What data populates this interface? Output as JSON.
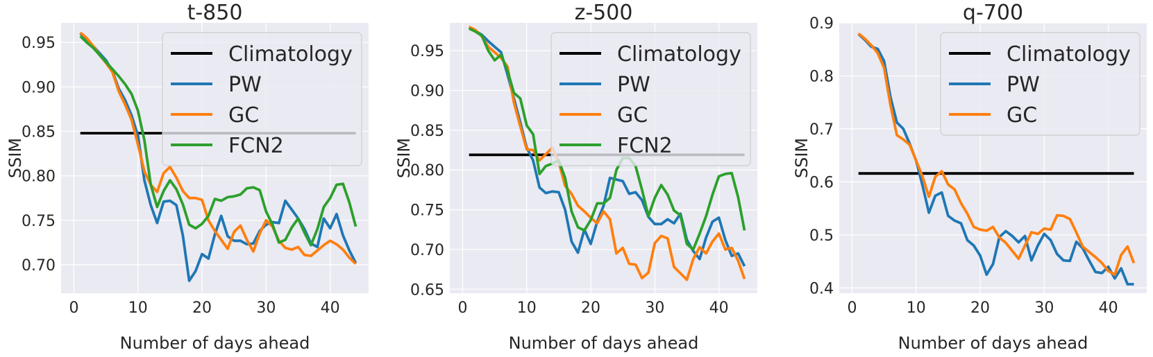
{
  "chart_data": [
    {
      "type": "line",
      "title": "t-850",
      "xlabel": "Number of days ahead",
      "ylabel": "SSIM",
      "xlim": [
        -2,
        46
      ],
      "ylim": [
        0.668,
        0.972
      ],
      "xticks": [
        0,
        10,
        20,
        30,
        40
      ],
      "yticks": [
        0.7,
        0.75,
        0.8,
        0.85,
        0.9,
        0.95
      ],
      "ytick_decimals": 2,
      "grid": true,
      "legend_position": "top-right",
      "series": [
        {
          "name": "Climatology",
          "color": "#000000",
          "x": [
            1,
            44
          ],
          "values": [
            0.848,
            0.848
          ]
        },
        {
          "name": "PW",
          "color": "#1f77b4",
          "x": [
            1,
            2,
            3,
            4,
            5,
            6,
            7,
            8,
            9,
            10,
            11,
            12,
            13,
            14,
            15,
            16,
            17,
            18,
            19,
            20,
            21,
            22,
            23,
            24,
            25,
            26,
            27,
            28,
            29,
            30,
            31,
            32,
            33,
            34,
            35,
            36,
            37,
            38,
            39,
            40,
            41,
            42,
            43,
            44
          ],
          "values": [
            0.96,
            0.953,
            0.946,
            0.938,
            0.93,
            0.918,
            0.898,
            0.885,
            0.868,
            0.845,
            0.795,
            0.767,
            0.747,
            0.771,
            0.772,
            0.767,
            0.733,
            0.682,
            0.693,
            0.712,
            0.707,
            0.734,
            0.755,
            0.732,
            0.727,
            0.727,
            0.723,
            0.724,
            0.738,
            0.745,
            0.748,
            0.747,
            0.772,
            0.762,
            0.752,
            0.74,
            0.724,
            0.72,
            0.752,
            0.741,
            0.757,
            0.733,
            0.716,
            0.702
          ]
        },
        {
          "name": "GC",
          "color": "#ff7f0e",
          "x": [
            1,
            2,
            3,
            4,
            5,
            6,
            7,
            8,
            9,
            10,
            11,
            12,
            13,
            14,
            15,
            16,
            17,
            18,
            19,
            20,
            21,
            22,
            23,
            24,
            25,
            26,
            27,
            28,
            29,
            30,
            31,
            32,
            33,
            34,
            35,
            36,
            37,
            38,
            39,
            40,
            41,
            42,
            43,
            44
          ],
          "values": [
            0.961,
            0.955,
            0.946,
            0.936,
            0.927,
            0.917,
            0.895,
            0.88,
            0.863,
            0.835,
            0.805,
            0.79,
            0.782,
            0.803,
            0.81,
            0.798,
            0.783,
            0.775,
            0.775,
            0.773,
            0.75,
            0.738,
            0.728,
            0.718,
            0.737,
            0.744,
            0.728,
            0.715,
            0.735,
            0.75,
            0.743,
            0.727,
            0.719,
            0.717,
            0.72,
            0.711,
            0.71,
            0.716,
            0.722,
            0.727,
            0.723,
            0.717,
            0.708,
            0.701
          ]
        },
        {
          "name": "FCN2",
          "color": "#2ca02c",
          "x": [
            1,
            2,
            3,
            4,
            5,
            6,
            7,
            8,
            9,
            10,
            11,
            12,
            13,
            14,
            15,
            16,
            17,
            18,
            19,
            20,
            21,
            22,
            23,
            24,
            25,
            26,
            27,
            28,
            29,
            30,
            31,
            32,
            33,
            34,
            35,
            36,
            37,
            38,
            39,
            40,
            41,
            42,
            43,
            44
          ],
          "values": [
            0.957,
            0.95,
            0.944,
            0.936,
            0.928,
            0.92,
            0.912,
            0.903,
            0.892,
            0.873,
            0.84,
            0.79,
            0.765,
            0.783,
            0.795,
            0.785,
            0.768,
            0.745,
            0.741,
            0.746,
            0.755,
            0.774,
            0.772,
            0.776,
            0.777,
            0.779,
            0.786,
            0.787,
            0.784,
            0.76,
            0.745,
            0.725,
            0.728,
            0.742,
            0.752,
            0.736,
            0.722,
            0.74,
            0.765,
            0.775,
            0.79,
            0.791,
            0.77,
            0.743
          ]
        }
      ]
    },
    {
      "type": "line",
      "title": "z-500",
      "xlabel": "Number of days ahead",
      "ylabel": "SSIM",
      "xlim": [
        -2,
        46
      ],
      "ylim": [
        0.645,
        0.985
      ],
      "xticks": [
        0,
        10,
        20,
        30,
        40
      ],
      "yticks": [
        0.65,
        0.7,
        0.75,
        0.8,
        0.85,
        0.9,
        0.95
      ],
      "ytick_decimals": 2,
      "grid": true,
      "legend_position": "top-right",
      "series": [
        {
          "name": "Climatology",
          "color": "#000000",
          "x": [
            1,
            44
          ],
          "values": [
            0.819,
            0.819
          ]
        },
        {
          "name": "PW",
          "color": "#1f77b4",
          "x": [
            1,
            2,
            3,
            4,
            5,
            6,
            7,
            8,
            9,
            10,
            11,
            12,
            13,
            14,
            15,
            16,
            17,
            18,
            19,
            20,
            21,
            22,
            23,
            24,
            25,
            26,
            27,
            28,
            29,
            30,
            31,
            32,
            33,
            34,
            35,
            36,
            37,
            38,
            39,
            40,
            41,
            42,
            43,
            44
          ],
          "values": [
            0.978,
            0.975,
            0.97,
            0.962,
            0.955,
            0.948,
            0.92,
            0.89,
            0.86,
            0.828,
            0.812,
            0.778,
            0.771,
            0.773,
            0.772,
            0.75,
            0.71,
            0.696,
            0.725,
            0.707,
            0.735,
            0.755,
            0.79,
            0.788,
            0.786,
            0.77,
            0.772,
            0.762,
            0.741,
            0.732,
            0.732,
            0.738,
            0.733,
            0.745,
            0.712,
            0.698,
            0.688,
            0.715,
            0.735,
            0.74,
            0.712,
            0.692,
            0.695,
            0.679
          ]
        },
        {
          "name": "GC",
          "color": "#ff7f0e",
          "x": [
            1,
            2,
            3,
            4,
            5,
            6,
            7,
            8,
            9,
            10,
            11,
            12,
            13,
            14,
            15,
            16,
            17,
            18,
            19,
            20,
            21,
            22,
            23,
            24,
            25,
            26,
            27,
            28,
            29,
            30,
            31,
            32,
            33,
            34,
            35,
            36,
            37,
            38,
            39,
            40,
            41,
            42,
            43,
            44
          ],
          "values": [
            0.98,
            0.976,
            0.968,
            0.955,
            0.948,
            0.941,
            0.93,
            0.885,
            0.855,
            0.826,
            0.825,
            0.812,
            0.82,
            0.828,
            0.81,
            0.78,
            0.77,
            0.755,
            0.748,
            0.74,
            0.733,
            0.748,
            0.738,
            0.695,
            0.702,
            0.682,
            0.681,
            0.664,
            0.671,
            0.708,
            0.717,
            0.714,
            0.678,
            0.67,
            0.662,
            0.688,
            0.703,
            0.695,
            0.71,
            0.72,
            0.7,
            0.702,
            0.686,
            0.663
          ]
        },
        {
          "name": "FCN2",
          "color": "#2ca02c",
          "x": [
            1,
            2,
            3,
            4,
            5,
            6,
            7,
            8,
            9,
            10,
            11,
            12,
            13,
            14,
            15,
            16,
            17,
            18,
            19,
            20,
            21,
            22,
            23,
            24,
            25,
            26,
            27,
            28,
            29,
            30,
            31,
            32,
            33,
            34,
            35,
            36,
            37,
            38,
            39,
            40,
            41,
            42,
            43,
            44
          ],
          "values": [
            0.978,
            0.974,
            0.969,
            0.95,
            0.938,
            0.945,
            0.925,
            0.897,
            0.89,
            0.856,
            0.845,
            0.795,
            0.805,
            0.808,
            0.812,
            0.79,
            0.748,
            0.728,
            0.724,
            0.737,
            0.758,
            0.758,
            0.765,
            0.8,
            0.815,
            0.815,
            0.805,
            0.775,
            0.742,
            0.765,
            0.781,
            0.769,
            0.749,
            0.743,
            0.707,
            0.7,
            0.72,
            0.742,
            0.769,
            0.792,
            0.795,
            0.796,
            0.766,
            0.724
          ]
        }
      ]
    },
    {
      "type": "line",
      "title": "q-700",
      "xlabel": "Number of days ahead",
      "ylabel": "SSIM",
      "xlim": [
        -2,
        46
      ],
      "ylim": [
        0.39,
        0.9
      ],
      "xticks": [
        0,
        10,
        20,
        30,
        40
      ],
      "yticks": [
        0.4,
        0.5,
        0.6,
        0.7,
        0.8,
        0.9
      ],
      "ytick_decimals": 1,
      "grid": true,
      "legend_position": "top-right",
      "series": [
        {
          "name": "Climatology",
          "color": "#000000",
          "x": [
            1,
            44
          ],
          "values": [
            0.616,
            0.616
          ]
        },
        {
          "name": "PW",
          "color": "#1f77b4",
          "x": [
            1,
            2,
            3,
            4,
            5,
            6,
            7,
            8,
            9,
            10,
            11,
            12,
            13,
            14,
            15,
            16,
            17,
            18,
            19,
            20,
            21,
            22,
            23,
            24,
            25,
            26,
            27,
            28,
            29,
            30,
            31,
            32,
            33,
            34,
            35,
            36,
            37,
            38,
            39,
            40,
            41,
            42,
            43,
            44
          ],
          "values": [
            0.879,
            0.868,
            0.855,
            0.851,
            0.828,
            0.76,
            0.712,
            0.7,
            0.672,
            0.64,
            0.593,
            0.542,
            0.574,
            0.58,
            0.536,
            0.527,
            0.522,
            0.49,
            0.48,
            0.461,
            0.425,
            0.445,
            0.496,
            0.507,
            0.498,
            0.486,
            0.498,
            0.452,
            0.48,
            0.502,
            0.49,
            0.464,
            0.452,
            0.451,
            0.487,
            0.475,
            0.452,
            0.43,
            0.428,
            0.44,
            0.418,
            0.437,
            0.407,
            0.407
          ]
        },
        {
          "name": "GC",
          "color": "#ff7f0e",
          "x": [
            1,
            2,
            3,
            4,
            5,
            6,
            7,
            8,
            9,
            10,
            11,
            12,
            13,
            14,
            15,
            16,
            17,
            18,
            19,
            20,
            21,
            22,
            23,
            24,
            25,
            26,
            27,
            28,
            29,
            30,
            31,
            32,
            33,
            34,
            35,
            36,
            37,
            38,
            39,
            40,
            41,
            42,
            43,
            44
          ],
          "values": [
            0.88,
            0.87,
            0.858,
            0.843,
            0.815,
            0.745,
            0.688,
            0.68,
            0.67,
            0.64,
            0.61,
            0.572,
            0.61,
            0.62,
            0.595,
            0.586,
            0.56,
            0.54,
            0.515,
            0.51,
            0.508,
            0.515,
            0.495,
            0.485,
            0.47,
            0.455,
            0.48,
            0.505,
            0.502,
            0.512,
            0.51,
            0.537,
            0.536,
            0.53,
            0.505,
            0.478,
            0.468,
            0.458,
            0.447,
            0.432,
            0.425,
            0.462,
            0.478,
            0.447
          ]
        }
      ]
    }
  ]
}
